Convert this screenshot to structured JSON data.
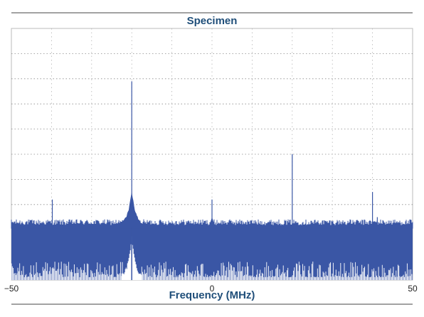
{
  "chart_data": {
    "type": "line",
    "title": "Specimen",
    "xlabel": "Frequency (MHz)",
    "ylabel": "",
    "xlim": [
      -50,
      50
    ],
    "ylim": [
      0,
      10
    ],
    "x_ticks": [
      {
        "value": -50,
        "label": "−50"
      },
      {
        "value": 0,
        "label": "0"
      },
      {
        "value": 50,
        "label": "50"
      }
    ],
    "x_gridlines": [
      -40,
      -30,
      -20,
      -10,
      0,
      10,
      20,
      30,
      40
    ],
    "y_gridlines": [
      1,
      2,
      3,
      4,
      5,
      6,
      7,
      8,
      9
    ],
    "grid": true,
    "series": [
      {
        "name": "",
        "color": "#3a56a5",
        "noise_floor": 2.1,
        "noise_band_top": 2.1,
        "spurs": [
          {
            "x": -39.8,
            "y": 3.2
          },
          {
            "x": -20,
            "y": 7.9
          },
          {
            "x": 0,
            "y": 3.2
          },
          {
            "x": 20,
            "y": 5.0
          },
          {
            "x": 40,
            "y": 3.5
          },
          {
            "x": 41.2,
            "y": 2.5
          }
        ]
      }
    ]
  }
}
